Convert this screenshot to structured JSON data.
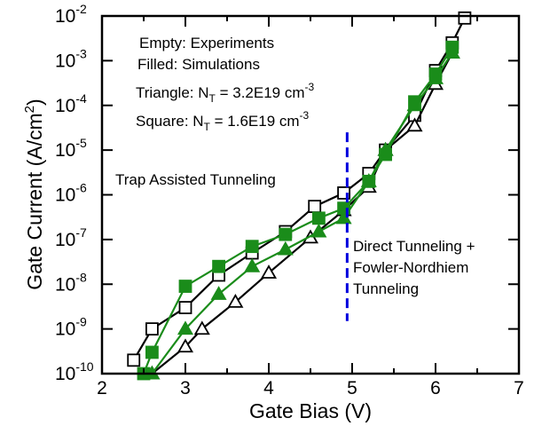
{
  "chart_data": {
    "type": "scatter",
    "xlabel": "Gate Bias (V)",
    "ylabel": "Gate Current (A/cm",
    "ylabel_sup": "2",
    "ylabel_end": ")",
    "xlim": [
      2,
      7
    ],
    "ylim_exp": [
      -10,
      -2
    ],
    "yscale": "log",
    "x_ticks": [
      "2",
      "3",
      "4",
      "5",
      "6",
      "7"
    ],
    "y_ticks": [
      {
        "base": "10",
        "exp": "-10"
      },
      {
        "base": "10",
        "exp": "-9"
      },
      {
        "base": "10",
        "exp": "-8"
      },
      {
        "base": "10",
        "exp": "-7"
      },
      {
        "base": "10",
        "exp": "-6"
      },
      {
        "base": "10",
        "exp": "-5"
      },
      {
        "base": "10",
        "exp": "-4"
      },
      {
        "base": "10",
        "exp": "-3"
      },
      {
        "base": "10",
        "exp": "-2"
      }
    ],
    "legend": {
      "line1": "Empty: Experiments",
      "line2": "Filled: Simulations",
      "triangle": {
        "pre": "Triangle: N",
        "sub": "T",
        "mid": " = 3.2E19 cm",
        "sup": "-3"
      },
      "square": {
        "pre": "Square: N",
        "sub": "T",
        "mid": " = 1.6E19 cm",
        "sup": "-3"
      }
    },
    "annotations": {
      "trap": "Trap Assisted Tunneling",
      "direct1": "Direct Tunneling +",
      "direct2": "Fowler-Nordhiem",
      "direct3": "Tunneling"
    },
    "vline": {
      "x": 4.94,
      "y_from": 1.5e-09,
      "y_to": 2.5e-05,
      "color": "#0000dd"
    },
    "colors": {
      "experiment": "#000000",
      "simulation": "#1a8c1a"
    },
    "series": [
      {
        "marker": "square",
        "filled": false,
        "x": [
          2.38,
          2.6,
          3.0,
          3.4,
          3.8,
          4.2,
          4.55,
          4.9,
          5.2,
          5.4,
          5.75,
          6.0,
          6.2,
          6.35
        ],
        "y": [
          2e-10,
          1e-09,
          3e-09,
          1.6e-08,
          5e-08,
          1.5e-07,
          5.5e-07,
          1.1e-06,
          3e-06,
          1e-05,
          6e-05,
          0.0006,
          0.0025,
          0.009
        ]
      },
      {
        "marker": "triangle",
        "filled": false,
        "x": [
          2.6,
          3.0,
          3.2,
          3.6,
          4.0,
          4.5,
          4.9,
          5.2,
          5.4,
          5.75,
          6.0,
          6.2
        ],
        "y": [
          1e-10,
          4e-10,
          1e-09,
          4e-09,
          1.8e-08,
          1.1e-07,
          4.5e-07,
          1.5e-06,
          1e-05,
          3.5e-05,
          0.0003,
          0.0015
        ]
      },
      {
        "marker": "square",
        "filled": true,
        "x": [
          2.5,
          2.6,
          3.0,
          3.4,
          3.8,
          4.2,
          4.6,
          4.9,
          5.2,
          5.4,
          5.75,
          6.0,
          6.2
        ],
        "y": [
          1e-10,
          3e-10,
          9e-09,
          2.5e-08,
          7e-08,
          1.3e-07,
          3e-07,
          5e-07,
          2e-06,
          8e-06,
          0.00012,
          0.0005,
          0.002
        ]
      },
      {
        "marker": "triangle",
        "filled": true,
        "x": [
          2.6,
          3.0,
          3.4,
          3.8,
          4.2,
          4.6,
          4.9,
          5.2,
          5.4,
          5.75,
          6.0,
          6.2
        ],
        "y": [
          1e-10,
          1e-09,
          6e-09,
          2.5e-08,
          6e-08,
          1.5e-07,
          3e-07,
          2e-06,
          1e-05,
          0.0001,
          0.0004,
          0.0015
        ]
      }
    ]
  }
}
